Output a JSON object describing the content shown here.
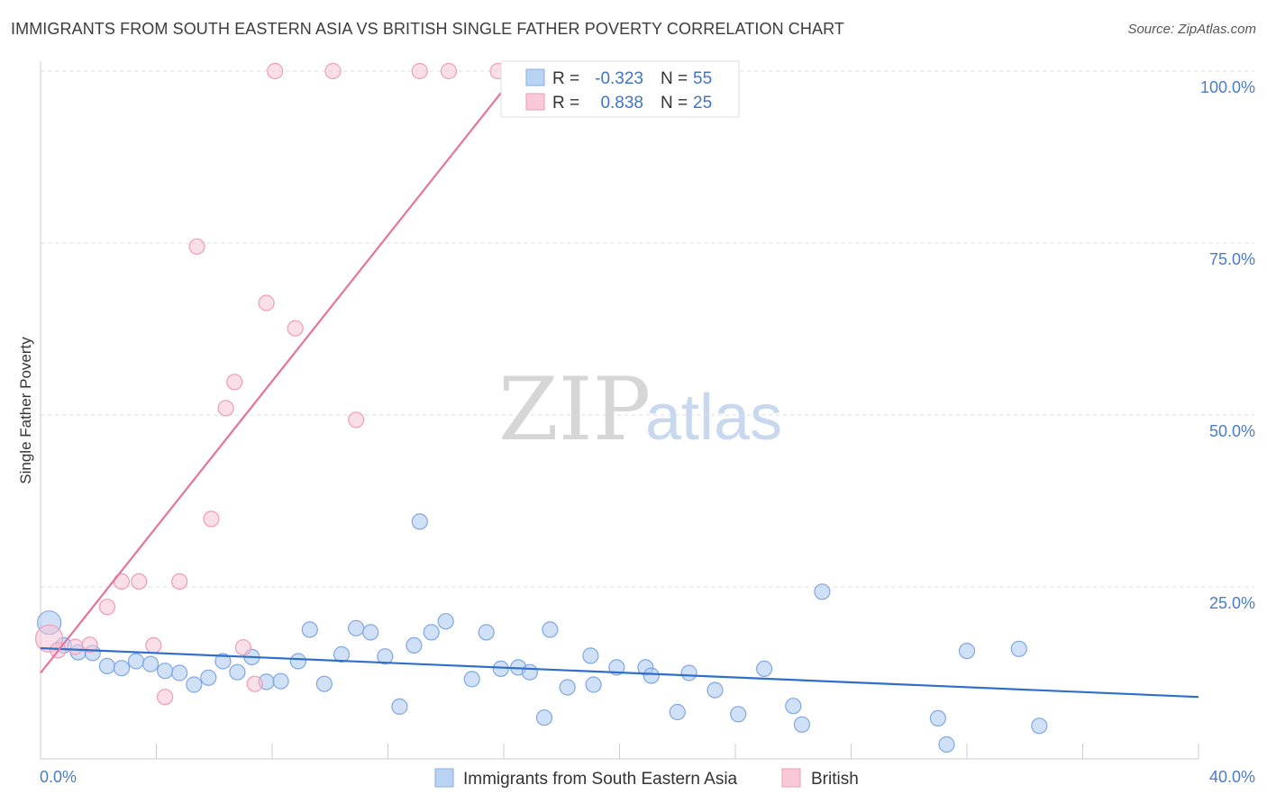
{
  "header": {
    "title": "IMMIGRANTS FROM SOUTH EASTERN ASIA VS BRITISH SINGLE FATHER POVERTY CORRELATION CHART",
    "source": "Source: ZipAtlas.com"
  },
  "watermark": {
    "zip": "ZIP",
    "atlas": "atlas"
  },
  "legend": {
    "r_label": "R =",
    "n_label": "N =",
    "rows": [
      {
        "r": "-0.323",
        "n": "55"
      },
      {
        "r": "0.838",
        "n": "25"
      }
    ]
  },
  "chart_data": {
    "type": "scatter",
    "title": "IMMIGRANTS FROM SOUTH EASTERN ASIA VS BRITISH SINGLE FATHER POVERTY CORRELATION CHART",
    "xlabel": "",
    "ylabel": "Single Father Poverty",
    "xlim": [
      0,
      40
    ],
    "ylim": [
      0,
      100
    ],
    "x_tick_labels": [
      "0.0%",
      "40.0%"
    ],
    "y_ticks": [
      25,
      50,
      75,
      100
    ],
    "y_tick_labels": [
      "25.0%",
      "50.0%",
      "75.0%",
      "100.0%"
    ],
    "grid": true,
    "legend_position": "top-center",
    "series": [
      {
        "name": "Immigrants from South Eastern Asia",
        "color": "#9dc1ee",
        "line_color": "#2f6fcb",
        "trend": [
          [
            0,
            16.1
          ],
          [
            40,
            9.0
          ]
        ],
        "points": [
          [
            0.3,
            19.8
          ],
          [
            0.8,
            16.5
          ],
          [
            1.3,
            15.5
          ],
          [
            1.8,
            15.4
          ],
          [
            2.3,
            13.5
          ],
          [
            2.8,
            13.2
          ],
          [
            3.3,
            14.2
          ],
          [
            3.8,
            13.8
          ],
          [
            4.3,
            12.8
          ],
          [
            4.8,
            12.5
          ],
          [
            5.3,
            10.8
          ],
          [
            5.8,
            11.8
          ],
          [
            6.3,
            14.2
          ],
          [
            6.8,
            12.6
          ],
          [
            7.3,
            14.8
          ],
          [
            7.8,
            11.2
          ],
          [
            8.3,
            11.3
          ],
          [
            8.9,
            14.2
          ],
          [
            9.3,
            18.8
          ],
          [
            9.8,
            10.9
          ],
          [
            10.4,
            15.2
          ],
          [
            10.9,
            19.0
          ],
          [
            11.4,
            18.4
          ],
          [
            11.9,
            14.9
          ],
          [
            12.4,
            7.6
          ],
          [
            12.9,
            16.5
          ],
          [
            13.1,
            34.5
          ],
          [
            13.5,
            18.4
          ],
          [
            14.0,
            20.0
          ],
          [
            14.9,
            11.6
          ],
          [
            15.4,
            18.4
          ],
          [
            15.9,
            13.1
          ],
          [
            16.5,
            13.3
          ],
          [
            16.9,
            12.6
          ],
          [
            17.4,
            6.0
          ],
          [
            17.6,
            18.8
          ],
          [
            18.2,
            10.4
          ],
          [
            19.0,
            15.0
          ],
          [
            19.1,
            10.8
          ],
          [
            19.9,
            13.3
          ],
          [
            20.9,
            13.3
          ],
          [
            21.1,
            12.1
          ],
          [
            22.0,
            6.8
          ],
          [
            22.4,
            12.5
          ],
          [
            23.3,
            10.0
          ],
          [
            24.1,
            6.5
          ],
          [
            25.0,
            13.1
          ],
          [
            26.0,
            7.7
          ],
          [
            26.3,
            5.0
          ],
          [
            27.0,
            24.3
          ],
          [
            31.0,
            5.9
          ],
          [
            31.3,
            2.1
          ],
          [
            32.0,
            15.7
          ],
          [
            33.8,
            16.0
          ],
          [
            34.5,
            4.8
          ]
        ]
      },
      {
        "name": "British",
        "color": "#f5b8cc",
        "line_color": "#e8739a",
        "trend": [
          [
            0,
            12.5
          ],
          [
            16.5,
            100.0
          ]
        ],
        "points": [
          [
            0.3,
            17.5
          ],
          [
            0.6,
            15.8
          ],
          [
            1.2,
            16.3
          ],
          [
            1.7,
            16.6
          ],
          [
            2.3,
            22.1
          ],
          [
            2.8,
            25.8
          ],
          [
            3.4,
            25.8
          ],
          [
            3.9,
            16.5
          ],
          [
            4.3,
            9.0
          ],
          [
            4.8,
            25.8
          ],
          [
            5.4,
            74.5
          ],
          [
            5.9,
            34.9
          ],
          [
            6.4,
            51.0
          ],
          [
            6.7,
            54.8
          ],
          [
            7.0,
            16.2
          ],
          [
            7.4,
            10.9
          ],
          [
            7.8,
            66.3
          ],
          [
            8.1,
            100.0
          ],
          [
            8.8,
            62.6
          ],
          [
            10.1,
            100.0
          ],
          [
            10.9,
            49.3
          ],
          [
            13.1,
            100.0
          ],
          [
            14.1,
            100.0
          ],
          [
            15.8,
            100.0
          ],
          [
            16.3,
            100.0
          ]
        ]
      }
    ]
  }
}
